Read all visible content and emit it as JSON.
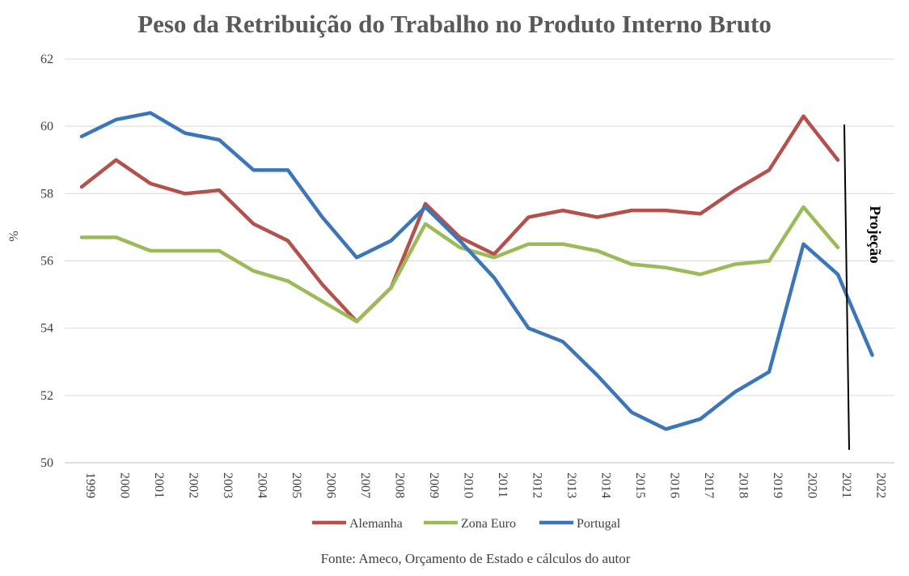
{
  "chart_data": {
    "type": "line",
    "title": "Peso da Retribuição do Trabalho no Produto Interno Bruto",
    "xlabel": "",
    "ylabel": "%",
    "ylim": [
      50,
      62
    ],
    "yticks": [
      50,
      52,
      54,
      56,
      58,
      60,
      62
    ],
    "grid": true,
    "legend_position": "bottom",
    "categories": [
      "1999",
      "2000",
      "2001",
      "2002",
      "2003",
      "2004",
      "2005",
      "2006",
      "2007",
      "2008",
      "2009",
      "2010",
      "2011",
      "2012",
      "2013",
      "2014",
      "2015",
      "2016",
      "2017",
      "2018",
      "2019",
      "2020",
      "2021",
      "2022"
    ],
    "series": [
      {
        "name": "Alemanha",
        "color": "#b5514d",
        "values": [
          58.2,
          59.0,
          58.3,
          58.0,
          58.1,
          57.1,
          56.6,
          55.3,
          54.2,
          55.2,
          57.7,
          56.7,
          56.2,
          57.3,
          57.5,
          57.3,
          57.5,
          57.5,
          57.4,
          58.1,
          58.7,
          60.3,
          59.0,
          null
        ]
      },
      {
        "name": "Zona Euro",
        "color": "#9bbb59",
        "values": [
          56.7,
          56.7,
          56.3,
          56.3,
          56.3,
          55.7,
          55.4,
          54.8,
          54.2,
          55.2,
          57.1,
          56.4,
          56.1,
          56.5,
          56.5,
          56.3,
          55.9,
          55.8,
          55.6,
          55.9,
          56.0,
          57.6,
          56.4,
          null
        ]
      },
      {
        "name": "Portugal",
        "color": "#3b76b9",
        "values": [
          59.7,
          60.2,
          60.4,
          59.8,
          59.6,
          58.7,
          58.7,
          57.3,
          56.1,
          56.6,
          57.6,
          56.6,
          55.5,
          54.0,
          53.6,
          52.6,
          51.5,
          51.0,
          51.3,
          52.1,
          52.7,
          56.5,
          55.6,
          53.2
        ]
      }
    ],
    "annotations": [
      {
        "text": "Projeção"
      }
    ],
    "source": "Fonte: Ameco, Orçamento de Estado e cálculos do autor"
  }
}
